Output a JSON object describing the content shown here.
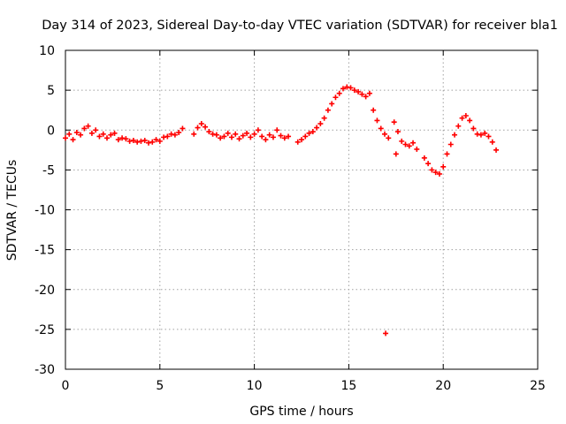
{
  "chart_data": {
    "type": "scatter",
    "title": "Day 314 of 2023, Sidereal Day-to-day VTEC variation (SDTVAR) for receiver bla1",
    "xlabel": "GPS time / hours",
    "ylabel": "SDTVAR / TECUs",
    "xlim": [
      0,
      25
    ],
    "ylim": [
      -30,
      10
    ],
    "xticks": [
      "0",
      "5",
      "10",
      "15",
      "20",
      "25"
    ],
    "yticks": [
      "10",
      "5",
      "0",
      "-5",
      "-10",
      "-15",
      "-20",
      "-25",
      "-30"
    ],
    "grid": true,
    "marker": "+",
    "series": [
      {
        "name": "SDTVAR",
        "color": "#ff0000",
        "x": [
          0.0,
          0.2,
          0.4,
          0.6,
          0.8,
          1.0,
          1.2,
          1.4,
          1.6,
          1.8,
          2.0,
          2.2,
          2.4,
          2.6,
          2.8,
          3.0,
          3.2,
          3.4,
          3.6,
          3.8,
          4.0,
          4.2,
          4.4,
          4.6,
          4.8,
          5.0,
          5.2,
          5.4,
          5.6,
          5.8,
          6.0,
          6.2,
          6.8,
          7.0,
          7.2,
          7.4,
          7.6,
          7.8,
          8.0,
          8.2,
          8.4,
          8.6,
          8.8,
          9.0,
          9.2,
          9.4,
          9.6,
          9.8,
          10.0,
          10.2,
          10.4,
          10.6,
          10.8,
          11.0,
          11.2,
          11.4,
          11.6,
          11.8,
          12.3,
          12.5,
          12.7,
          12.9,
          13.1,
          13.3,
          13.5,
          13.7,
          13.9,
          14.1,
          14.3,
          14.5,
          14.7,
          14.9,
          15.1,
          15.3,
          15.5,
          15.7,
          15.9,
          16.1,
          16.3,
          16.5,
          16.7,
          16.9,
          17.1,
          17.6,
          17.8,
          18.0,
          18.2,
          18.4,
          18.6,
          19.0,
          19.2,
          19.4,
          19.6,
          19.8,
          20.0,
          20.2,
          20.4,
          20.6,
          20.8,
          21.0,
          21.2,
          21.4,
          21.6,
          21.8,
          22.0,
          22.2,
          22.4,
          22.6,
          22.8,
          16.95,
          17.4,
          17.5
        ],
        "y": [
          -1.0,
          -0.5,
          -1.2,
          -0.3,
          -0.6,
          0.2,
          0.5,
          -0.4,
          0.0,
          -0.8,
          -0.5,
          -1.0,
          -0.6,
          -0.4,
          -1.2,
          -1.0,
          -1.1,
          -1.4,
          -1.3,
          -1.5,
          -1.4,
          -1.3,
          -1.6,
          -1.5,
          -1.2,
          -1.4,
          -0.9,
          -0.8,
          -0.5,
          -0.6,
          -0.3,
          0.2,
          -0.5,
          0.3,
          0.8,
          0.4,
          -0.2,
          -0.5,
          -0.6,
          -1.0,
          -0.8,
          -0.4,
          -0.9,
          -0.5,
          -1.1,
          -0.7,
          -0.4,
          -0.9,
          -0.5,
          0.0,
          -0.8,
          -1.2,
          -0.6,
          -0.9,
          0.0,
          -0.7,
          -1.0,
          -0.8,
          -1.5,
          -1.2,
          -0.8,
          -0.4,
          -0.2,
          0.3,
          0.8,
          1.5,
          2.5,
          3.3,
          4.1,
          4.6,
          5.2,
          5.4,
          5.3,
          5.0,
          4.8,
          4.5,
          4.2,
          4.6,
          2.5,
          1.2,
          0.2,
          -0.5,
          -1.0,
          -0.2,
          -1.4,
          -1.8,
          -2.0,
          -1.6,
          -2.4,
          -3.5,
          -4.2,
          -5.0,
          -5.3,
          -5.5,
          -4.6,
          -3.0,
          -1.8,
          -0.6,
          0.5,
          1.5,
          1.8,
          1.2,
          0.2,
          -0.5,
          -0.6,
          -0.4,
          -0.8,
          -1.5,
          -2.5,
          -25.5,
          1.0,
          -3.0
        ]
      }
    ]
  }
}
